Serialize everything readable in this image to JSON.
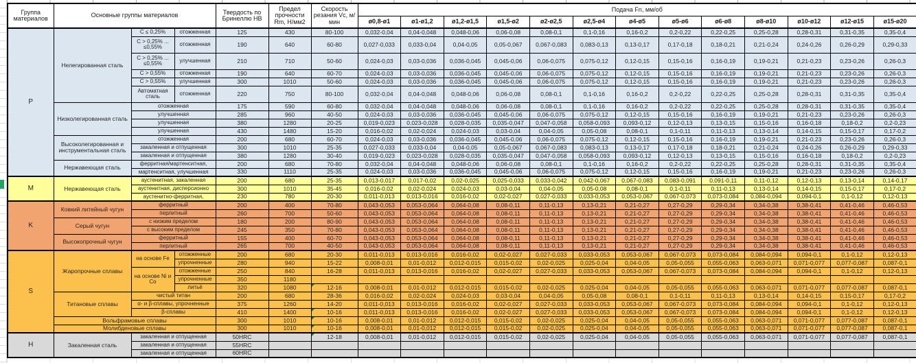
{
  "header": {
    "col_group": "Группа материалов",
    "col_main_groups": "Основные группы материалов",
    "col_hardness": "Твердость по Бринеллю НВ",
    "col_strength": "Предел прочности Rm, Н/мм2",
    "col_speed": "Скорость резания Vc, м/мин",
    "col_feed": "Подача Fn, мм/об",
    "diameters": [
      "ø0,8-ø1",
      "ø1-ø1,2",
      "ø1,2-ø1,5",
      "ø1,5-ø2",
      "ø2-ø2,5",
      "ø2,5-ø4",
      "ø4-ø5",
      "ø5-ø6",
      "ø6-ø8",
      "ø8-ø10",
      "ø10-ø12",
      "ø12-ø15",
      "ø15-ø20"
    ]
  },
  "colors": {
    "P": "#dce6f1",
    "M": "#ffff99",
    "K": "#f2a470",
    "S": "#fcc04d",
    "H": "#d9d9d9",
    "flag_triangle": "#107c41",
    "row_header_selection": "#21a366"
  },
  "feed_patterns": {
    "A": [
      "0,032-0,04",
      "0,04-0,048",
      "0,048-0,06",
      "0,06-0,08",
      "0,08-0,1",
      "0,1-0,16",
      "0,16-0,2",
      "0,2-0,22",
      "0,22-0,25",
      "0,25-0,28",
      "0,28-0,31",
      "0,31-0,35",
      "0,35-0,4"
    ],
    "B": [
      "0,027-0,033",
      "0,033-0,04",
      "0,04-0,05",
      "0,05-0,067",
      "0,067-0,083",
      "0,083-0,13",
      "0,13-0,17",
      "0,17-0,18",
      "0,18-0,21",
      "0,21-0,24",
      "0,24-0,26",
      "0,26-0,29",
      "0,29-0,33"
    ],
    "C": [
      "0,024-0,03",
      "0,03-0,036",
      "0,036-0,045",
      "0,045-0,06",
      "0,06-0,075",
      "0,075-0,12",
      "0,12-0,15",
      "0,15-0,16",
      "0,16-0,19",
      "0,19-0,21",
      "0,21-0,23",
      "0,23-0,26",
      "0,26-0,3"
    ],
    "D": [
      "0,019-0,023",
      "0,023-0,028",
      "0,028-0,035",
      "0,035-0,047",
      "0,047-0,058",
      "0,058-0,093",
      "0,093-0,12",
      "0,12-0,13",
      "0,13-0,15",
      "0,15-0,16",
      "0,16-0,18",
      "0,18-0,2",
      "0,2-0,23"
    ],
    "E": [
      "0,016-0,02",
      "0,02-0,024",
      "0,024-0,03",
      "0,03-0,04",
      "0,04-0,05",
      "0,05-0,08",
      "0,08-0,1",
      "0,1-0,11",
      "0,11-0,13",
      "0,13-0,14",
      "0,14-0,15",
      "0,15-0,17",
      "0,17-0,2"
    ],
    "F": [
      "0,013-0,017",
      "0,017-0,02",
      "0,02-0,025",
      "0,025-0,033",
      "0,033-0,042",
      "0,042-0,067",
      "0,067-0,083",
      "0,083-0,091",
      "0,091-0,11",
      "0,11-0,12",
      "0,12-0,13",
      "0,13-0,14",
      "0,14-0,17"
    ],
    "G": [
      "0,011-0,013",
      "0,013-0,016",
      "0,016-0,02",
      "0,02-0,027",
      "0,027-0,033",
      "0,033-0,053",
      "0,053-0,067",
      "0,067-0,073",
      "0,073-0,084",
      "0,084-0,094",
      "0,094-0,1",
      "0,1-0,12",
      "0,12-0,13"
    ],
    "H": [
      "0,043-0,053",
      "0,053-0,064",
      "0,064-0,08",
      "0,08-0,11",
      "0,11-0,13",
      "0,13-0,21",
      "0,21-0,27",
      "0,27-0,29",
      "0,29-0,34",
      "0,34-0,38",
      "0,38-0,41",
      "0,41-0,46",
      "0,46-0,53"
    ],
    "I": [
      "0,008-0,01",
      "0,01-0,012",
      "0,012-0,015",
      "0,015-0,02",
      "0,02-0,025",
      "0,025-0,04",
      "0,04-0,05",
      "0,05-0,055",
      "0,055-0,063",
      "0,063-0,071",
      "0,071-0,077",
      "0,077-0,087",
      "0,087-0,1"
    ],
    "EMPTY": [
      "",
      "",
      "",
      "",
      "",
      "",
      "",
      "",
      "",
      "",
      "",
      "",
      ""
    ]
  },
  "sections": [
    {
      "letter": "P",
      "groups": [
        {
          "name": "Нелегированная сталь",
          "rows": [
            {
              "sub1": "C ≤ 0,25%",
              "sub2": "отожженная",
              "hb": "125",
              "rm": "430",
              "vc": "80-100",
              "fp": "A"
            },
            {
              "sub1": "C > 0,25% ... ≤0,55%",
              "sub2": "отожженная",
              "hb": "190",
              "rm": "640",
              "vc": "60-80",
              "fp": "B",
              "tall": true
            },
            {
              "sub1": "C > 0,25% ... ≤0,55%",
              "sub2": "улучшенная",
              "hb": "210",
              "rm": "710",
              "vc": "50-60",
              "fp": "C",
              "tall": true
            },
            {
              "sub1": "C > 0,55%",
              "sub2": "отожженная",
              "hb": "190",
              "rm": "640",
              "vc": "60-70",
              "fp": "C"
            },
            {
              "sub1": "C > 0,55%",
              "sub2": "улучшенная",
              "hb": "300",
              "rm": "1010",
              "vc": "50-60",
              "fp": "C"
            },
            {
              "sub1": "Автоматная сталь",
              "sub2": "отожженная",
              "hb": "220",
              "rm": "750",
              "vc": "80-100",
              "fp": "A",
              "tall": true
            }
          ]
        },
        {
          "name": "Низколегированная сталь",
          "rows": [
            {
              "sub": "отожженная",
              "hb": "175",
              "rm": "590",
              "vc": "60-80",
              "fp": "A"
            },
            {
              "sub": "улучшенная",
              "hb": "285",
              "rm": "960",
              "vc": "40-50",
              "fp": "C"
            },
            {
              "sub": "улучшенная",
              "hb": "380",
              "rm": "1280",
              "vc": "20-25",
              "fp": "D"
            },
            {
              "sub": "улучшенная",
              "hb": "430",
              "rm": "1480",
              "vc": "15-20",
              "fp": "E"
            }
          ]
        },
        {
          "name": "Высоколегированная и инструментальная сталь",
          "rows": [
            {
              "sub": "отожженная",
              "hb": "200",
              "rm": "680",
              "vc": "60-70",
              "fp": "C"
            },
            {
              "sub": "закаленная и отпущенная",
              "hb": "300",
              "rm": "1010",
              "vc": "25-35",
              "fp": "B"
            },
            {
              "sub": "закаленная и отпущенная",
              "hb": "380",
              "rm": "1280",
              "vc": "30-40",
              "fp": "D"
            }
          ]
        },
        {
          "name": "Нержавеющая сталь",
          "rows": [
            {
              "sub": "ферритная/мартенситная,",
              "hb": "200",
              "rm": "680",
              "vc": "70-80",
              "fp": "A"
            },
            {
              "sub": "мартенситная, улучшенная",
              "hb": "330",
              "rm": "1110",
              "vc": "25-35",
              "fp": "C"
            }
          ]
        }
      ]
    },
    {
      "letter": "M",
      "groups": [
        {
          "name": "Нержавеющая сталь",
          "rows": [
            {
              "sub": "аустенитная, закаленная",
              "hb": "200",
              "rm": "680",
              "vc": "25-35",
              "fp": "F"
            },
            {
              "sub": "аустенитная, дисперсионно",
              "hb": "300",
              "rm": "1010",
              "vc": "35-45",
              "fp": "E"
            },
            {
              "sub": "аустенитно-ферритная,",
              "hb": "230",
              "rm": "780",
              "vc": "20-30",
              "fp": "G"
            }
          ]
        }
      ]
    },
    {
      "letter": "K",
      "groups": [
        {
          "name": "Ковкий литейный чугун",
          "rows": [
            {
              "sub": "ферритный",
              "hb": "200",
              "rm": "400",
              "vc": "70-80",
              "fp": "H"
            },
            {
              "sub": "перлитный",
              "hb": "260",
              "rm": "700",
              "vc": "50-60",
              "fp": "H"
            }
          ]
        },
        {
          "name": "Серый чугун",
          "rows": [
            {
              "sub": "с низким пределом",
              "hb": "180",
              "rm": "200",
              "vc": "80-90",
              "fp": "H"
            },
            {
              "sub": "с высоким пределом",
              "hb": "245",
              "rm": "350",
              "vc": "70-80",
              "fp": "H"
            }
          ]
        },
        {
          "name": "Высокопрочный чугун",
          "rows": [
            {
              "sub": "ферритный",
              "hb": "155",
              "rm": "400",
              "vc": "60-70",
              "fp": "H"
            },
            {
              "sub": "перлитный",
              "hb": "265",
              "rm": "700",
              "vc": "40-50",
              "fp": "H"
            }
          ]
        }
      ]
    },
    {
      "letter": "S",
      "groups": [
        {
          "name": "Жаропрочные сплавы",
          "rows": [
            {
              "sub1": "на основе Fe",
              "sub1_rs": 2,
              "sub2": "отожженные",
              "hb": "200",
              "rm": "680",
              "vc": "20-30",
              "fp": "G"
            },
            {
              "sub2": "упрочненные",
              "hb": "280",
              "rm": "940",
              "vc": "15-22",
              "fp": "I"
            },
            {
              "sub1": "на основе Ni и Co",
              "sub1_rs": 3,
              "sub2": "отожженные",
              "hb": "250",
              "rm": "840",
              "vc": "16-28",
              "fp": "G"
            },
            {
              "sub2": "упрочненные",
              "hb": "350",
              "rm": "1180",
              "vc": "",
              "fp": "EMPTY"
            },
            {
              "sub2": "литьё",
              "hb": "320",
              "rm": "1080",
              "vc": "12-16",
              "flag": true,
              "fp": "I"
            }
          ]
        },
        {
          "name": "Титановые сплавы",
          "rows": [
            {
              "sub": "чистый титан",
              "hb": "200",
              "rm": "680",
              "vc": "28-36",
              "fp": "E"
            },
            {
              "sub": "α- и β-сплавы, упрочненные",
              "hb": "375",
              "rm": "1260",
              "vc": "14-20",
              "fp": "G"
            },
            {
              "sub": "β-сплавы",
              "hb": "410",
              "rm": "1400",
              "vc": "10-16",
              "flag": true,
              "fp": "G"
            }
          ]
        },
        {
          "name": "Вольфрамовые сплавы",
          "colspan": 3,
          "rows": [
            {
              "hb": "300",
              "rm": "1010",
              "vc": "10-16",
              "flag": true,
              "fp": "I"
            }
          ]
        },
        {
          "name": "Молибденовые сплавы",
          "colspan": 3,
          "rows": [
            {
              "hb": "300",
              "rm": "1010",
              "vc": "10-16",
              "flag": true,
              "fp": "I"
            }
          ]
        }
      ]
    },
    {
      "letter": "H",
      "groups": [
        {
          "name": "Закаленная сталь",
          "rows": [
            {
              "sub": "закаленная и отпущенная",
              "hb": "50HRC",
              "rm": "",
              "vc": "12-18",
              "flag": true,
              "fp": "I"
            },
            {
              "sub": "закаленная и отпущенная",
              "hb": "55HRC",
              "rm": "",
              "vc": "",
              "fp": "EMPTY"
            },
            {
              "sub": "закаленная и отпущенная",
              "hb": "60HRC",
              "rm": "",
              "vc": "",
              "fp": "EMPTY"
            }
          ]
        }
      ]
    }
  ]
}
